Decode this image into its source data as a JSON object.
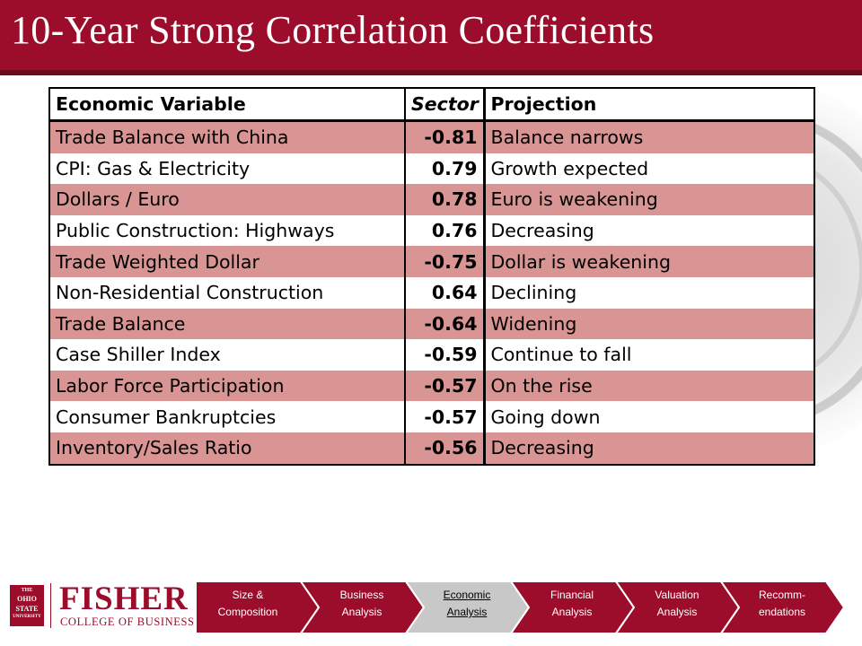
{
  "title": "10-Year Strong Correlation Coefficients",
  "table": {
    "headers": [
      "Economic Variable",
      "Sector",
      "Projection"
    ],
    "rows": [
      {
        "variable": "Trade Balance with China",
        "sector": "-0.81",
        "projection": "Balance narrows"
      },
      {
        "variable": "CPI: Gas & Electricity",
        "sector": "0.79",
        "projection": "Growth expected"
      },
      {
        "variable": "Dollars / Euro",
        "sector": "0.78",
        "projection": "Euro is weakening"
      },
      {
        "variable": "Public Construction: Highways",
        "sector": "0.76",
        "projection": "Decreasing"
      },
      {
        "variable": "Trade Weighted Dollar",
        "sector": "-0.75",
        "projection": "Dollar is weakening"
      },
      {
        "variable": "Non-Residential Construction",
        "sector": "0.64",
        "projection": "Declining"
      },
      {
        "variable": "Trade Balance",
        "sector": "-0.64",
        "projection": "Widening"
      },
      {
        "variable": "Case Shiller Index",
        "sector": "-0.59",
        "projection": "Continue to fall"
      },
      {
        "variable": "Labor Force Participation",
        "sector": "-0.57",
        "projection": "On the rise"
      },
      {
        "variable": "Consumer Bankruptcies",
        "sector": "-0.57",
        "projection": "Going down"
      },
      {
        "variable": "Inventory/Sales Ratio",
        "sector": "-0.56",
        "projection": "Decreasing"
      }
    ]
  },
  "footer": {
    "osu_logo_text": [
      "THE",
      "OHIO",
      "STATE",
      "UNIVERSITY"
    ],
    "brand": "FISHER",
    "college": "COLLEGE OF BUSINESS",
    "nav": [
      {
        "line1": "Size &",
        "line2": "Composition",
        "active": false
      },
      {
        "line1": "Business",
        "line2": "Analysis",
        "active": false
      },
      {
        "line1": "Economic",
        "line2": "Analysis",
        "active": true
      },
      {
        "line1": "Financial",
        "line2": "Analysis",
        "active": false
      },
      {
        "line1": "Valuation",
        "line2": "Analysis",
        "active": false
      },
      {
        "line1": "Recomm-",
        "line2": "endations",
        "active": false
      }
    ]
  },
  "colors": {
    "brand": "#9b0d2b",
    "row_shade": "#d99594",
    "nav_active": "#c8c8c8"
  }
}
